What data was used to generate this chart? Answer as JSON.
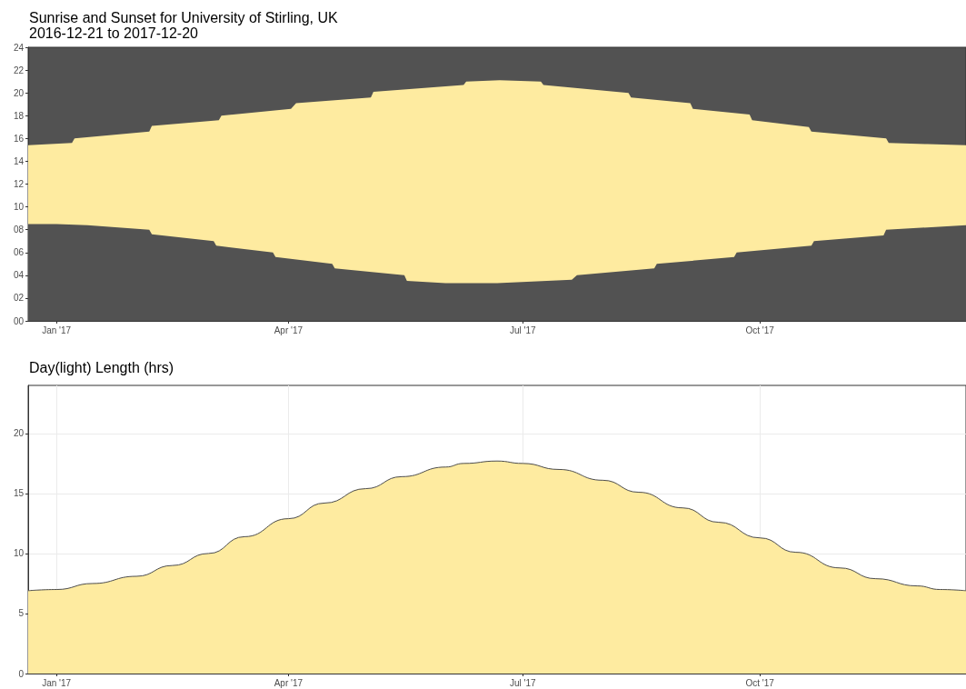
{
  "chart_data": [
    {
      "type": "area",
      "title": "Sunrise and Sunset for University of Stirling, UK",
      "subtitle": "2016-12-21 to 2017-12-20",
      "xlim": [
        "2016-12-21",
        "2017-12-20"
      ],
      "xticks": [
        {
          "value": "2017-01-01",
          "label": "Jan '17"
        },
        {
          "value": "2017-04-01",
          "label": "Apr '17"
        },
        {
          "value": "2017-07-01",
          "label": "Jul '17"
        },
        {
          "value": "2017-10-01",
          "label": "Oct '17"
        }
      ],
      "ylim": [
        0,
        24
      ],
      "yticks": [
        {
          "value": 0,
          "label": "00"
        },
        {
          "value": 2,
          "label": "02"
        },
        {
          "value": 4,
          "label": "04"
        },
        {
          "value": 6,
          "label": "06"
        },
        {
          "value": 8,
          "label": "08"
        },
        {
          "value": 10,
          "label": "10"
        },
        {
          "value": 12,
          "label": "12"
        },
        {
          "value": 14,
          "label": "14"
        },
        {
          "value": 16,
          "label": "16"
        },
        {
          "value": 18,
          "label": "18"
        },
        {
          "value": 20,
          "label": "20"
        },
        {
          "value": 22,
          "label": "22"
        },
        {
          "value": 24,
          "label": "24"
        }
      ],
      "grid": false,
      "series": [
        {
          "color": "#feeba0",
          "x": [
            "2016-12-21",
            "2017-01-07",
            "2017-01-08",
            "2017-02-06",
            "2017-02-07",
            "2017-03-05",
            "2017-03-06",
            "2017-04-02",
            "2017-04-04",
            "2017-05-03",
            "2017-05-04",
            "2017-06-08",
            "2017-06-09",
            "2017-06-22",
            "2017-07-08",
            "2017-07-09",
            "2017-08-11",
            "2017-08-12",
            "2017-09-04",
            "2017-09-05",
            "2017-09-27",
            "2017-09-28",
            "2017-10-20",
            "2017-10-21",
            "2017-11-19",
            "2017-11-20",
            "2017-12-05",
            "2017-12-20"
          ],
          "values": [
            15.4,
            15.6,
            16.0,
            16.6,
            17.1,
            17.6,
            18.0,
            18.6,
            19.1,
            19.6,
            20.1,
            20.7,
            21.0,
            21.1,
            21.0,
            20.7,
            20.0,
            19.6,
            19.1,
            18.6,
            18.1,
            17.6,
            17.0,
            16.6,
            16.0,
            15.6,
            15.5,
            15.4
          ]
        },
        {
          "color": "#525252",
          "x": [
            "2016-12-21",
            "2017-01-01",
            "2017-01-13",
            "2017-02-06",
            "2017-02-07",
            "2017-03-03",
            "2017-03-04",
            "2017-03-26",
            "2017-03-27",
            "2017-04-18",
            "2017-04-19",
            "2017-05-16",
            "2017-05-17",
            "2017-06-01",
            "2017-06-21",
            "2017-07-20",
            "2017-07-22",
            "2017-08-21",
            "2017-08-22",
            "2017-09-21",
            "2017-09-22",
            "2017-10-21",
            "2017-10-22",
            "2017-11-18",
            "2017-11-19",
            "2017-12-05",
            "2017-12-20"
          ],
          "values": [
            8.5,
            8.5,
            8.4,
            8.0,
            7.6,
            7.0,
            6.6,
            6.0,
            5.6,
            5.0,
            4.6,
            4.0,
            3.5,
            3.3,
            3.3,
            3.6,
            4.0,
            4.6,
            5.0,
            5.6,
            6.0,
            6.6,
            7.0,
            7.5,
            8.0,
            8.2,
            8.4
          ]
        }
      ]
    },
    {
      "type": "area",
      "title": "Day(light) Length (hrs)",
      "xlim": [
        "2016-12-21",
        "2017-12-20"
      ],
      "xticks": [
        {
          "value": "2017-01-01",
          "label": "Jan '17"
        },
        {
          "value": "2017-04-01",
          "label": "Apr '17"
        },
        {
          "value": "2017-07-01",
          "label": "Jul '17"
        },
        {
          "value": "2017-10-01",
          "label": "Oct '17"
        }
      ],
      "ylim": [
        0,
        24
      ],
      "yticks": [
        0,
        5,
        10,
        15,
        20
      ],
      "grid": true,
      "series": [
        {
          "color": "#feeba0",
          "x": [
            "2016-12-21",
            "2017-01-01",
            "2017-01-15",
            "2017-02-01",
            "2017-02-15",
            "2017-03-01",
            "2017-03-15",
            "2017-04-01",
            "2017-04-15",
            "2017-05-01",
            "2017-05-15",
            "2017-06-01",
            "2017-06-08",
            "2017-06-21",
            "2017-07-01",
            "2017-07-15",
            "2017-08-01",
            "2017-08-15",
            "2017-09-01",
            "2017-09-15",
            "2017-10-01",
            "2017-10-15",
            "2017-11-01",
            "2017-11-15",
            "2017-12-01",
            "2017-12-10",
            "2017-12-20"
          ],
          "values": [
            6.9,
            7.0,
            7.5,
            8.1,
            9.0,
            10.0,
            11.4,
            12.9,
            14.2,
            15.4,
            16.4,
            17.2,
            17.5,
            17.7,
            17.5,
            17.0,
            16.1,
            15.1,
            13.8,
            12.6,
            11.3,
            10.1,
            8.8,
            7.9,
            7.3,
            7.0,
            6.9
          ]
        }
      ]
    }
  ]
}
